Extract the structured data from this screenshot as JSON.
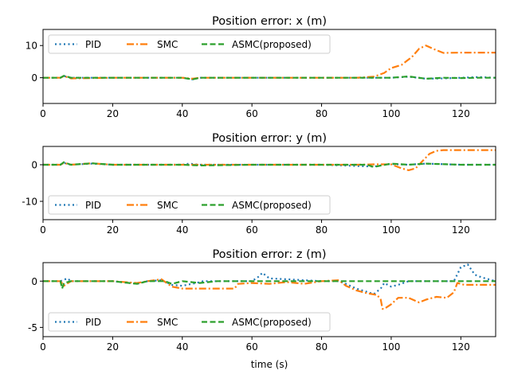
{
  "chart_data": [
    {
      "type": "line",
      "title": "Position error: x (m)",
      "xlabel": "",
      "ylabel": "",
      "xlim": [
        0,
        130
      ],
      "ylim": [
        -8,
        15
      ],
      "xticks": [
        0,
        20,
        40,
        60,
        80,
        100,
        120
      ],
      "yticks": [
        0,
        10
      ],
      "legend_position": "top-left",
      "series": [
        {
          "name": "PID",
          "color": "#1f77b4",
          "style": "dotted",
          "x": [
            0,
            5,
            6,
            8,
            20,
            40,
            43,
            45,
            60,
            80,
            95,
            100,
            105,
            110,
            115,
            120,
            125,
            130
          ],
          "y": [
            0,
            0,
            0.5,
            0,
            0,
            0,
            -0.5,
            0,
            0,
            0,
            0,
            0,
            0.3,
            -0.3,
            -0.2,
            0,
            0.2,
            0
          ]
        },
        {
          "name": "SMC",
          "color": "#ff7f0e",
          "style": "dashdot",
          "x": [
            0,
            5,
            6,
            8,
            20,
            40,
            43,
            45,
            60,
            80,
            90,
            95,
            98,
            100,
            103,
            106,
            108,
            110,
            112,
            115,
            120,
            125,
            130
          ],
          "y": [
            0,
            0,
            0.5,
            -0.2,
            0,
            0,
            -0.3,
            0,
            0,
            0,
            0,
            0.3,
            1.5,
            3,
            4,
            6.5,
            9,
            10,
            9,
            7.7,
            7.8,
            7.8,
            7.8
          ]
        },
        {
          "name": "ASMC(proposed)",
          "color": "#2ca02c",
          "style": "dashed",
          "x": [
            0,
            5,
            6,
            8,
            20,
            40,
            43,
            45,
            60,
            80,
            95,
            100,
            105,
            110,
            115,
            120,
            125,
            130
          ],
          "y": [
            0,
            0,
            0.6,
            0,
            0,
            0,
            -0.5,
            0,
            0,
            0,
            0,
            0,
            0.4,
            -0.3,
            0,
            -0.1,
            0,
            0
          ]
        }
      ]
    },
    {
      "type": "line",
      "title": "Position error: y (m)",
      "xlabel": "",
      "ylabel": "",
      "xlim": [
        0,
        130
      ],
      "ylim": [
        -15,
        5
      ],
      "xticks": [
        0,
        20,
        40,
        60,
        80,
        100,
        120
      ],
      "yticks": [
        -10,
        0
      ],
      "legend_position": "bottom-left",
      "series": [
        {
          "name": "PID",
          "color": "#1f77b4",
          "style": "dotted",
          "x": [
            0,
            5,
            6,
            8,
            14,
            20,
            40,
            42,
            45,
            60,
            80,
            95,
            98,
            100,
            105,
            110,
            120,
            130
          ],
          "y": [
            0,
            0,
            0.5,
            0,
            0.3,
            0,
            0,
            0.3,
            0,
            0,
            0,
            -0.5,
            0,
            0.2,
            0,
            0.3,
            0,
            0
          ]
        },
        {
          "name": "SMC",
          "color": "#ff7f0e",
          "style": "dashdot",
          "x": [
            0,
            5,
            6,
            8,
            14,
            20,
            40,
            60,
            80,
            90,
            95,
            100,
            103,
            105,
            107,
            109,
            111,
            113,
            115,
            120,
            125,
            130
          ],
          "y": [
            0,
            0,
            0.5,
            0,
            0.4,
            0,
            0,
            0,
            0,
            0,
            0.1,
            0.1,
            -1,
            -1.5,
            -1,
            1,
            3,
            3.8,
            4,
            4,
            4,
            4
          ]
        },
        {
          "name": "ASMC(proposed)",
          "color": "#2ca02c",
          "style": "dashed",
          "x": [
            0,
            5,
            6,
            8,
            14,
            20,
            40,
            45,
            60,
            80,
            93,
            95,
            100,
            105,
            110,
            120,
            130
          ],
          "y": [
            0,
            0,
            0.7,
            0,
            0.4,
            0,
            0,
            -0.2,
            0,
            0,
            0,
            -0.6,
            0.3,
            0,
            0.3,
            0,
            0
          ]
        }
      ]
    },
    {
      "type": "line",
      "title": "Position error: z (m)",
      "xlabel": "time (s)",
      "ylabel": "",
      "xlim": [
        0,
        130
      ],
      "ylim": [
        -6,
        2
      ],
      "xticks": [
        0,
        20,
        40,
        60,
        80,
        100,
        120
      ],
      "yticks": [
        -5,
        0
      ],
      "legend_position": "bottom-left",
      "series": [
        {
          "name": "PID",
          "color": "#1f77b4",
          "style": "dotted",
          "x": [
            0,
            5,
            7,
            8,
            20,
            27,
            30,
            34,
            37,
            40,
            44,
            46,
            55,
            60,
            62,
            63,
            65,
            70,
            80,
            85,
            87,
            90,
            95,
            97,
            98,
            100,
            102,
            105,
            110,
            118,
            120,
            122,
            124,
            126,
            128,
            130
          ],
          "y": [
            0,
            0,
            0.3,
            0,
            0,
            -0.3,
            0,
            0.1,
            -0.4,
            -0.5,
            -0.2,
            0,
            0,
            0,
            0.5,
            0.9,
            0.3,
            0.2,
            0,
            0,
            -0.3,
            -0.8,
            -1.4,
            -0.8,
            -0.2,
            -0.6,
            -0.4,
            0,
            0,
            0,
            1.5,
            1.8,
            0.7,
            0.4,
            0.2,
            0
          ]
        },
        {
          "name": "SMC",
          "color": "#ff7f0e",
          "style": "dashdot",
          "x": [
            0,
            5,
            6,
            8,
            20,
            27,
            30,
            34,
            37,
            40,
            45,
            50,
            55,
            56,
            60,
            65,
            70,
            75,
            80,
            85,
            87,
            90,
            93,
            96,
            97,
            97.5,
            98,
            100,
            102,
            105,
            108,
            110,
            113,
            116,
            118,
            119,
            121,
            125,
            130
          ],
          "y": [
            0,
            0,
            -0.5,
            0,
            0,
            -0.2,
            0,
            0.2,
            -0.6,
            -0.8,
            -0.8,
            -0.8,
            -0.8,
            -0.3,
            -0.2,
            -0.3,
            -0.1,
            -0.3,
            0,
            0.1,
            -0.5,
            -1,
            -1.3,
            -1.5,
            -2,
            -3,
            -3,
            -2.5,
            -1.8,
            -1.8,
            -2.3,
            -2,
            -1.7,
            -1.8,
            -1.2,
            -0.2,
            -0.4,
            -0.4,
            -0.4
          ]
        },
        {
          "name": "ASMC(proposed)",
          "color": "#2ca02c",
          "style": "dashed",
          "x": [
            0,
            5,
            5.5,
            6,
            8,
            20,
            27,
            30,
            35,
            37,
            40,
            45,
            50,
            55,
            60,
            70,
            80,
            85,
            87,
            90,
            100,
            110,
            120,
            130
          ],
          "y": [
            0,
            0,
            -0.8,
            -0.2,
            0,
            0,
            -0.3,
            0,
            0,
            -0.3,
            0,
            -0.2,
            0,
            0,
            0,
            0,
            0,
            0,
            0,
            0,
            0,
            0,
            0,
            0
          ]
        }
      ]
    }
  ]
}
